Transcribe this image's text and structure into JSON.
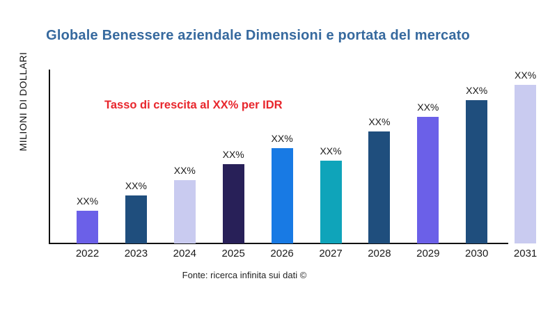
{
  "chart_data": {
    "type": "bar",
    "title": "Globale Benessere aziendale Dimensioni e portata del mercato",
    "ylabel": "MILIONI DI DOLLARI",
    "annotation": "Tasso di crescita al XX% per IDR",
    "source": "Fonte: ricerca infinita sui dati ©",
    "categories": [
      "2022",
      "2023",
      "2024",
      "2025",
      "2026",
      "2027",
      "2028",
      "2029",
      "2030",
      "2031"
    ],
    "values": [
      47,
      69,
      91,
      114,
      137,
      119,
      161,
      182,
      206,
      228
    ],
    "bar_labels": [
      "XX%",
      "XX%",
      "XX%",
      "XX%",
      "XX%",
      "XX%",
      "XX%",
      "XX%",
      "XX%",
      "XX%"
    ],
    "colors": [
      "#6B60E8",
      "#1F4E7D",
      "#C9CBF0",
      "#282058",
      "#187AE4",
      "#0FA4BA",
      "#1F4E7D",
      "#6B60E8",
      "#1F4E7D",
      "#C9CBF0"
    ],
    "ylim": [
      0,
      250
    ],
    "xlabel": "",
    "grid": false,
    "legend": "none",
    "title_color": "#36699E",
    "annotation_color": "#E8262C",
    "axis_color": "#111111"
  }
}
